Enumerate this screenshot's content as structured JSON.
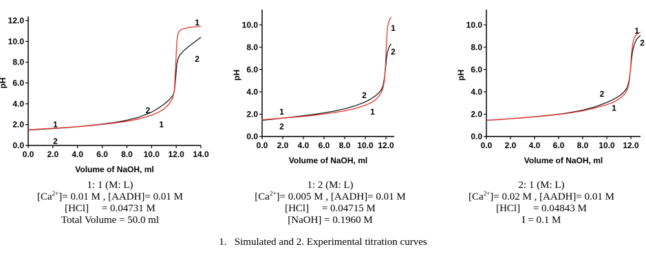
{
  "chart_data": [
    {
      "type": "line",
      "xlabel": "Volume of NaOH, ml",
      "ylabel": "pH",
      "xlim": [
        0,
        14
      ],
      "ylim": [
        0,
        12
      ],
      "xticks": [
        "0.0",
        "2.0",
        "4.0",
        "6.0",
        "8.0",
        "10.0",
        "12.0",
        "14.0"
      ],
      "yticks": [
        "0.0",
        "2.0",
        "4.0",
        "6.0",
        "8.0",
        "10.0",
        "12.0"
      ],
      "series": [
        {
          "name": "1",
          "color": "#e8342c",
          "x": [
            0,
            1,
            2,
            3,
            4,
            5,
            6,
            7,
            8,
            9,
            10,
            10.5,
            11,
            11.4,
            11.7,
            11.85,
            11.95,
            12.05,
            12.15,
            12.3,
            12.5,
            13,
            13.5,
            14
          ],
          "y": [
            1.5,
            1.58,
            1.65,
            1.72,
            1.8,
            1.9,
            2.02,
            2.15,
            2.32,
            2.55,
            2.9,
            3.15,
            3.5,
            3.95,
            4.5,
            5.3,
            7.5,
            10.0,
            10.8,
            11.05,
            11.2,
            11.33,
            11.4,
            11.45
          ],
          "labels": [
            {
              "text": "1",
              "x": 2.2,
              "y": 2.0
            },
            {
              "text": "1",
              "x": 10.8,
              "y": 2.0
            },
            {
              "text": "1",
              "x": 13.7,
              "y": 11.8
            }
          ]
        },
        {
          "name": "2",
          "color": "#1a1a1a",
          "x": [
            0,
            1,
            2,
            3,
            4,
            5,
            6,
            7,
            8,
            9,
            10,
            10.5,
            11,
            11.4,
            11.7,
            11.85,
            11.95,
            12.05,
            12.15,
            12.3,
            12.6,
            13,
            13.5,
            14
          ],
          "y": [
            1.48,
            1.55,
            1.62,
            1.7,
            1.8,
            1.92,
            2.05,
            2.2,
            2.42,
            2.72,
            3.2,
            3.55,
            3.95,
            4.35,
            4.75,
            5.2,
            6.4,
            7.8,
            8.35,
            8.7,
            9.1,
            9.5,
            9.95,
            10.4
          ],
          "labels": [
            {
              "text": "2",
              "x": 2.2,
              "y": 0.4
            },
            {
              "text": "2",
              "x": 9.7,
              "y": 3.35
            },
            {
              "text": "2",
              "x": 13.7,
              "y": 8.3
            }
          ]
        }
      ]
    },
    {
      "type": "line",
      "xlabel": "Volume of NaOH, ml",
      "ylabel": "pH",
      "xlim": [
        0,
        12.8
      ],
      "ylim": [
        0,
        11
      ],
      "xticks": [
        "0.0",
        "2.0",
        "4.0",
        "6.0",
        "8.0",
        "10.0",
        "12.0"
      ],
      "yticks": [
        "0.0",
        "2.0",
        "4.0",
        "6.0",
        "8.0",
        "10.0"
      ],
      "series": [
        {
          "name": "1",
          "color": "#e8342c",
          "x": [
            0,
            1,
            2,
            3,
            4,
            5,
            6,
            7,
            8,
            9,
            10,
            10.5,
            11,
            11.3,
            11.55,
            11.7,
            11.85,
            11.95,
            12.05,
            12.15,
            12.3,
            12.5
          ],
          "y": [
            1.5,
            1.58,
            1.65,
            1.72,
            1.8,
            1.9,
            2.02,
            2.15,
            2.3,
            2.5,
            2.8,
            3.0,
            3.3,
            3.6,
            3.95,
            4.3,
            5.0,
            6.3,
            8.5,
            9.8,
            10.4,
            10.7
          ],
          "labels": [
            {
              "text": "1",
              "x": 1.9,
              "y": 2.2
            },
            {
              "text": "1",
              "x": 10.7,
              "y": 2.2
            },
            {
              "text": "1",
              "x": 12.7,
              "y": 9.7
            }
          ]
        },
        {
          "name": "2",
          "color": "#1a1a1a",
          "x": [
            0,
            1,
            2,
            3,
            4,
            5,
            6,
            7,
            8,
            9,
            10,
            10.5,
            11,
            11.3,
            11.55,
            11.7,
            11.85,
            11.95,
            12.05,
            12.15,
            12.3,
            12.5
          ],
          "y": [
            1.45,
            1.55,
            1.65,
            1.75,
            1.86,
            1.98,
            2.12,
            2.28,
            2.48,
            2.75,
            3.1,
            3.35,
            3.65,
            3.9,
            4.2,
            4.5,
            5.2,
            6.0,
            7.0,
            7.6,
            8.0,
            8.3
          ],
          "labels": [
            {
              "text": "2",
              "x": 1.9,
              "y": 0.9
            },
            {
              "text": "2",
              "x": 9.9,
              "y": 3.7
            },
            {
              "text": "2",
              "x": 12.7,
              "y": 7.6
            }
          ]
        }
      ]
    },
    {
      "type": "line",
      "xlabel": "Volume of NaOH, ml",
      "ylabel": "pH",
      "xlim": [
        0,
        12.8
      ],
      "ylim": [
        0,
        11
      ],
      "xticks": [
        "0.0",
        "2.0",
        "4.0",
        "6.0",
        "8.0",
        "10.0",
        "12.0"
      ],
      "yticks": [
        "0.0",
        "2.0",
        "4.0",
        "6.0",
        "8.0",
        "10.0"
      ],
      "series": [
        {
          "name": "1",
          "color": "#e8342c",
          "x": [
            0,
            1,
            2,
            3,
            4,
            5,
            6,
            7,
            8,
            9,
            10,
            10.5,
            11,
            11.3,
            11.55,
            11.7,
            11.85,
            11.95,
            12.05,
            12.15,
            12.3,
            12.5,
            12.8
          ],
          "y": [
            1.45,
            1.52,
            1.6,
            1.68,
            1.76,
            1.86,
            1.98,
            2.12,
            2.3,
            2.55,
            2.85,
            3.05,
            3.35,
            3.6,
            3.9,
            4.2,
            4.8,
            5.8,
            7.4,
            8.3,
            8.9,
            9.2,
            9.35
          ],
          "labels": [
            {
              "text": "1",
              "x": 10.6,
              "y": 2.55
            },
            {
              "text": "1",
              "x": 12.5,
              "y": 9.45
            }
          ]
        },
        {
          "name": "2",
          "color": "#1a1a1a",
          "x": [
            0,
            1,
            2,
            3,
            4,
            5,
            6,
            7,
            8,
            9,
            10,
            10.5,
            11,
            11.3,
            11.55,
            11.7,
            11.85,
            11.95,
            12.05,
            12.15,
            12.3,
            12.5,
            12.8
          ],
          "y": [
            1.45,
            1.52,
            1.6,
            1.68,
            1.77,
            1.88,
            2.0,
            2.16,
            2.36,
            2.65,
            3.05,
            3.3,
            3.6,
            3.85,
            4.15,
            4.4,
            5.0,
            5.8,
            6.9,
            7.7,
            8.3,
            8.75,
            9.05
          ],
          "labels": [
            {
              "text": "2",
              "x": 9.6,
              "y": 3.8
            },
            {
              "text": "2",
              "x": 12.95,
              "y": 8.4
            }
          ]
        }
      ]
    }
  ],
  "captions": [
    {
      "ratio": "1: 1 (M: L)",
      "conc_a": "]= 0.01 M , [AADH]= 0.01 M",
      "hcl": "[HCl]     = 0.04731 M",
      "extra": "Total Volume = 50.0 ml"
    },
    {
      "ratio": "1: 2 (M: L)",
      "conc_a": "]= 0.005 M , [AADH]= 0.01 M",
      "hcl": "[HCl]     = 0.04715 M",
      "extra": "[NaOH] = 0.1960 M"
    },
    {
      "ratio": "2: 1 (M: L)",
      "conc_a": "]= 0.02 M , [AADH]= 0.01 M",
      "hcl": "[HCl]     = 0.04843 M",
      "extra": "I = 0.1 M"
    }
  ],
  "ca_label": "[Ca",
  "ca_charge": "2+",
  "footnote": "1.   Simulated and 2. Experimental titration curves"
}
